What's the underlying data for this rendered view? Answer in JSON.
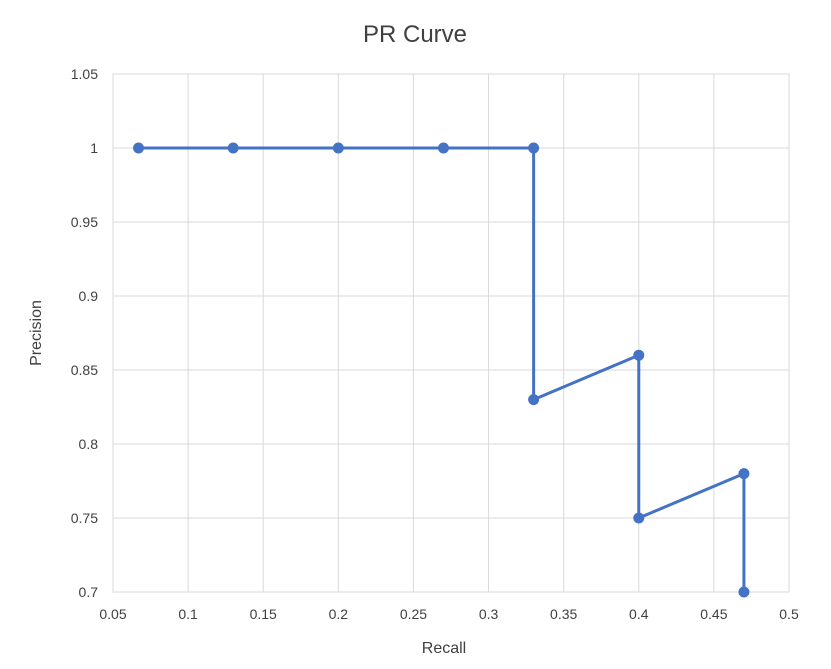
{
  "chart_data": {
    "type": "line",
    "title": "PR Curve",
    "xlabel": "Recall",
    "ylabel": "Precision",
    "xlim": [
      0.05,
      0.5
    ],
    "ylim": [
      0.7,
      1.05
    ],
    "x_ticks": [
      "0.05",
      "0.1",
      "0.15",
      "0.2",
      "0.25",
      "0.3",
      "0.35",
      "0.4",
      "0.45",
      "0.5"
    ],
    "y_ticks": [
      "0.7",
      "0.75",
      "0.8",
      "0.85",
      "0.9",
      "0.95",
      "1",
      "1.05"
    ],
    "grid": true,
    "series": [
      {
        "color": "#4472c4",
        "x": [
          0.067,
          0.13,
          0.2,
          0.27,
          0.33,
          0.33,
          0.4,
          0.4,
          0.47,
          0.47
        ],
        "y": [
          1.0,
          1.0,
          1.0,
          1.0,
          1.0,
          0.83,
          0.86,
          0.75,
          0.78,
          0.7
        ]
      }
    ]
  }
}
